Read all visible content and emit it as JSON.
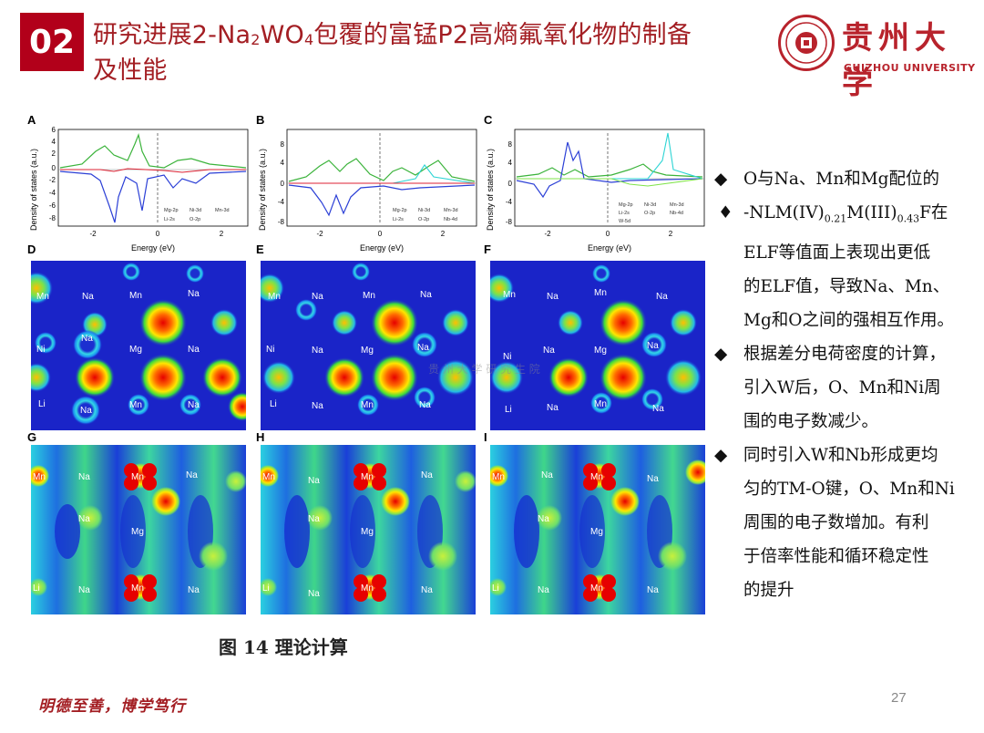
{
  "header": {
    "section_number": "02",
    "title_part1": "研究进展2-Na",
    "title_sub1": "2",
    "title_part2": "WO",
    "title_sub2": "4",
    "title_part3": "包覆的富锰P2高熵氟氧化物的制备",
    "title_line2": "及性能",
    "university_cn": "贵州大学",
    "university_en": "GUIZHOU UNIVERSITY"
  },
  "figure": {
    "panel_labels": [
      "A",
      "B",
      "C",
      "D",
      "E",
      "F",
      "G",
      "H",
      "I"
    ],
    "caption": "图 14 理论计算",
    "watermark": "贵 州 大 学 研 究 生 院",
    "dos_ylabel": "Density of states (a.u.)",
    "dos_xlabel": "Energy (eV)",
    "dos_xticks": [
      "-2",
      "0",
      "2"
    ],
    "dos_panels": [
      {
        "yticks": [
          "6",
          "4",
          "2",
          "0",
          "-2",
          "-4",
          "-6",
          "-8"
        ],
        "legend": [
          "Mg-2p",
          "Ni-3d",
          "Mn-3d",
          "Li-2s",
          "O-2p"
        ]
      },
      {
        "yticks": [
          "8",
          "4",
          "0",
          "-4",
          "-8"
        ],
        "legend": [
          "Mg-2p",
          "Ni-3d",
          "Mn-3d",
          "Li-2s",
          "O-2p",
          "Nb-4d"
        ]
      },
      {
        "yticks": [
          "8",
          "4",
          "0",
          "-4",
          "-8"
        ],
        "legend": [
          "Mg-2p",
          "Ni-3d",
          "Mn-3d",
          "Li-2s",
          "O-2p",
          "Nb-4d",
          "W-5d"
        ]
      }
    ],
    "elf_labels": [
      [
        "Mn",
        "Na",
        "Mn",
        "Na",
        "Na",
        "Ni",
        "Mg",
        "Na",
        "Li",
        "Na",
        "Mn",
        "Na"
      ],
      [
        "Mn",
        "Na",
        "Mn",
        "Na",
        "Na",
        "Ni",
        "Mg",
        "Na",
        "Li",
        "Na",
        "Mn",
        "Na"
      ],
      [
        "Mn",
        "Na",
        "Mn",
        "Na",
        "Na",
        "Ni",
        "Mg",
        "Na",
        "Li",
        "Na",
        "Mn",
        "Na"
      ]
    ],
    "cdd_labels": [
      [
        "Mn",
        "Na",
        "Mn",
        "Na",
        "Na",
        "Mg",
        "Li",
        "Na",
        "Mn",
        "Na"
      ],
      [
        "Mn",
        "Na",
        "Mn",
        "Na",
        "Na",
        "Mg",
        "Li",
        "Na",
        "Mn",
        "Na"
      ],
      [
        "Mn",
        "Na",
        "Mn",
        "Na",
        "Na",
        "Mg",
        "Li",
        "Na",
        "Mn",
        "Na"
      ]
    ]
  },
  "bullets": [
    {
      "mark": "◆",
      "text": "O与Na、Mn和Mg配位的"
    },
    {
      "mark": "♦",
      "text": "-NLM(IV)",
      "sub1": "0.21",
      "text2": "M(III)",
      "sub2": "0.43",
      "text3": "F在"
    },
    {
      "text": "ELF等值面上表现出更低"
    },
    {
      "text": "的ELF值，导致Na、Mn、"
    },
    {
      "text": "Mg和O之间的强相互作用。"
    },
    {
      "mark": "◆",
      "text": "根据差分电荷密度的计算，"
    },
    {
      "text": "引入W后，O、Mn和Ni周"
    },
    {
      "text": "围的电子数减少。"
    },
    {
      "mark": "◆",
      "text": "同时引入W和Nb形成更均"
    },
    {
      "text": "匀的TM-O键，O、Mn和Ni"
    },
    {
      "text": "周围的电子数增加。有利"
    },
    {
      "text": "于倍率性能和循环稳定性"
    },
    {
      "text": "的提升"
    }
  ],
  "footer": {
    "motto": "明德至善，博学笃行",
    "page_number": "27"
  },
  "colors": {
    "brand_red": "#a31e23",
    "badge_red": "#b2001a"
  }
}
